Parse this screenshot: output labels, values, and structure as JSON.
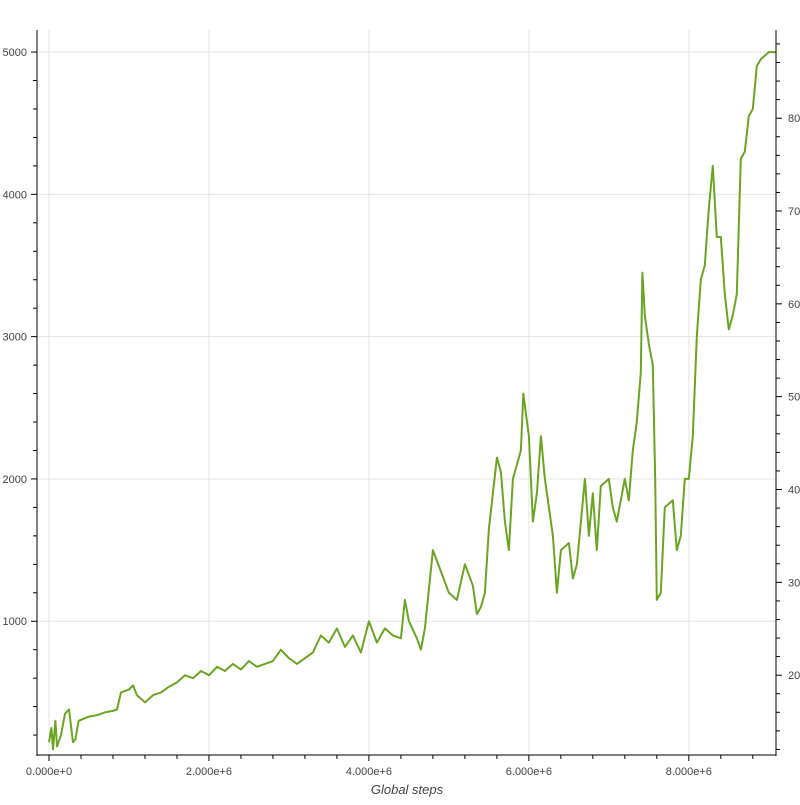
{
  "chart_data": {
    "type": "line",
    "title": "",
    "xlabel": "Global steps",
    "ylabel": "",
    "y2label": "",
    "xlim": [
      -150000,
      9090000
    ],
    "ylim": [
      60,
      5155
    ],
    "y2lim": [
      11.4,
      89.5
    ],
    "grid": true,
    "color": "#6aa521",
    "x_ticks": [
      0,
      2000000,
      4000000,
      6000000,
      8000000
    ],
    "x_tick_labels": [
      "0.000e+0",
      "2.000e+6",
      "4.000e+6",
      "6.000e+6",
      "8.000e+6"
    ],
    "y_ticks": [
      1000,
      2000,
      3000,
      4000,
      5000
    ],
    "y_tick_labels": [
      "1000",
      "2000",
      "3000",
      "4000",
      "5000"
    ],
    "y2_ticks": [
      20,
      30,
      40,
      50,
      60,
      70,
      80
    ],
    "y2_tick_labels": [
      "20",
      "30",
      "40",
      "50",
      "60",
      "70",
      "80"
    ],
    "series": [
      {
        "x": [
          0,
          30000,
          50000,
          80000,
          100000,
          150000,
          200000,
          250000,
          300000,
          330000,
          370000,
          500000,
          600000,
          700000,
          800000,
          850000,
          900000,
          1000000,
          1050000,
          1100000,
          1200000,
          1300000,
          1400000,
          1500000,
          1600000,
          1700000,
          1800000,
          1900000,
          2000000,
          2100000,
          2200000,
          2300000,
          2400000,
          2500000,
          2600000,
          2800000,
          2900000,
          3000000,
          3100000,
          3300000,
          3400000,
          3500000,
          3600000,
          3700000,
          3800000,
          3900000,
          4000000,
          4100000,
          4200000,
          4300000,
          4400000,
          4450000,
          4500000,
          4600000,
          4650000,
          4700000,
          4800000,
          4900000,
          5000000,
          5100000,
          5200000,
          5300000,
          5350000,
          5400000,
          5450000,
          5500000,
          5600000,
          5650000,
          5700000,
          5750000,
          5800000,
          5900000,
          5930000,
          6000000,
          6050000,
          6100000,
          6150000,
          6200000,
          6300000,
          6350000,
          6400000,
          6500000,
          6550000,
          6600000,
          6700000,
          6750000,
          6800000,
          6850000,
          6900000,
          7000000,
          7050000,
          7100000,
          7200000,
          7250000,
          7300000,
          7350000,
          7400000,
          7420000,
          7450000,
          7500000,
          7550000,
          7580000,
          7600000,
          7650000,
          7700000,
          7800000,
          7850000,
          7900000,
          7950000,
          8000000,
          8050000,
          8100000,
          8150000,
          8200000,
          8250000,
          8300000,
          8350000,
          8400000,
          8450000,
          8500000,
          8550000,
          8600000,
          8650000,
          8700000,
          8750000,
          8800000,
          8850000,
          8900000,
          9000000,
          9090000
        ],
        "y": [
          150,
          250,
          100,
          300,
          120,
          200,
          350,
          380,
          150,
          170,
          300,
          330,
          340,
          360,
          370,
          380,
          500,
          520,
          550,
          480,
          430,
          480,
          500,
          540,
          570,
          620,
          600,
          650,
          620,
          680,
          650,
          700,
          660,
          720,
          680,
          720,
          800,
          740,
          700,
          780,
          900,
          850,
          950,
          820,
          900,
          780,
          1000,
          850,
          950,
          900,
          880,
          1150,
          1000,
          880,
          800,
          950,
          1500,
          1350,
          1200,
          1150,
          1400,
          1250,
          1050,
          1100,
          1200,
          1650,
          2150,
          2050,
          1700,
          1500,
          2000,
          2200,
          2600,
          2300,
          1700,
          1900,
          2300,
          2000,
          1600,
          1200,
          1500,
          1550,
          1300,
          1400,
          2000,
          1600,
          1900,
          1500,
          1950,
          2000,
          1800,
          1700,
          2000,
          1850,
          2200,
          2400,
          2750,
          3450,
          3150,
          2950,
          2800,
          2000,
          1150,
          1200,
          1800,
          1850,
          1500,
          1600,
          2000,
          2000,
          2300,
          3000,
          3400,
          3500,
          3900,
          4200,
          3700,
          3700,
          3300,
          3050,
          3150,
          3300,
          4250,
          4300,
          4550,
          4600,
          4900,
          4950,
          5000,
          5000
        ]
      }
    ]
  }
}
